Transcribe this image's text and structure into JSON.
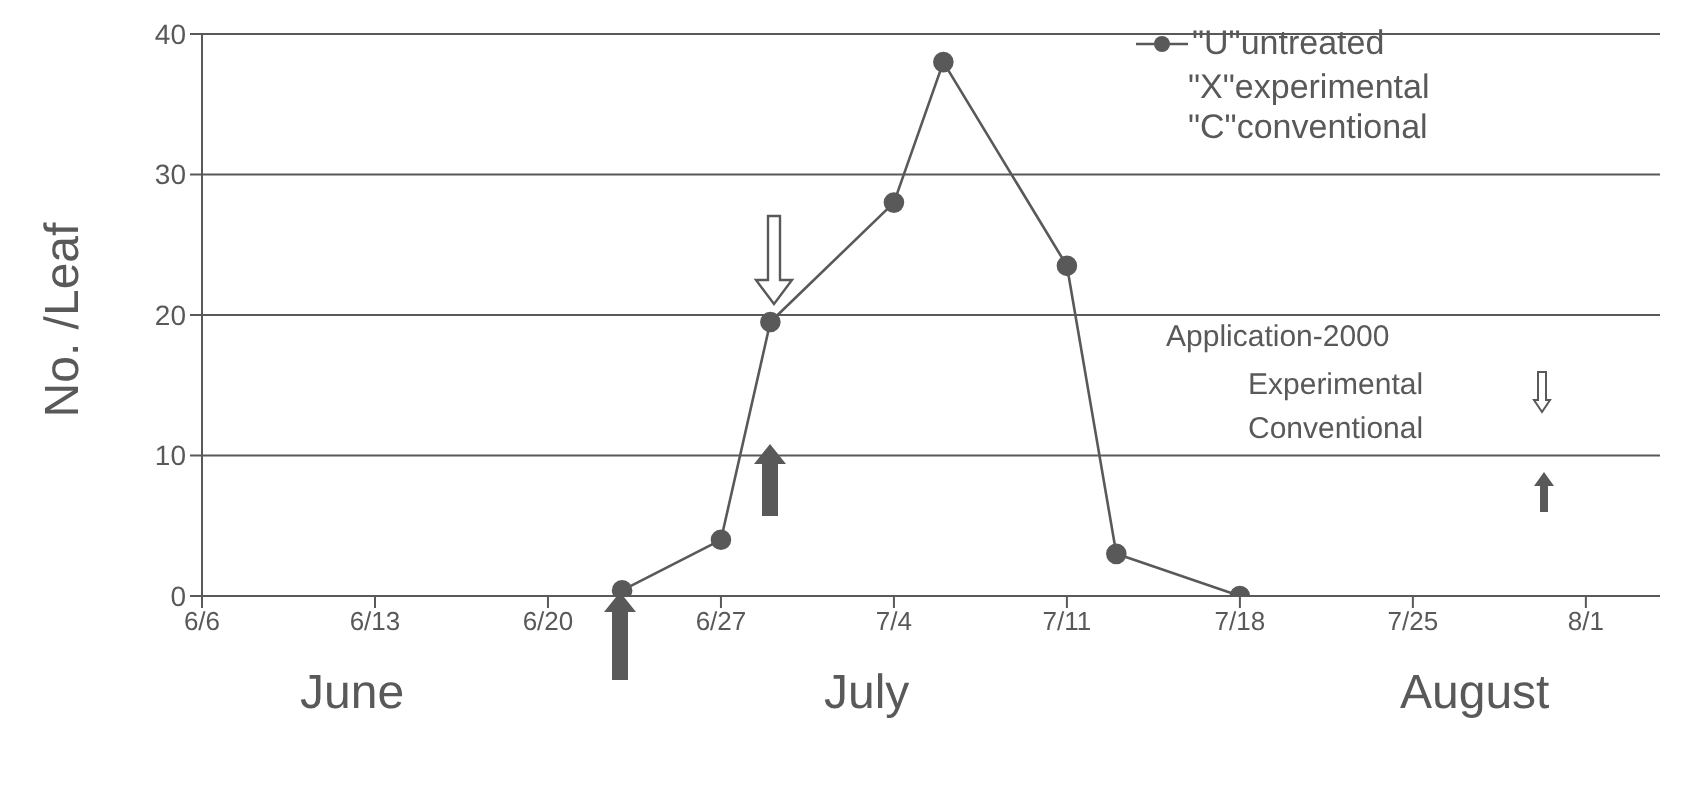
{
  "chart_data": {
    "type": "line",
    "ylabel": "No. /Leaf",
    "x": [
      "2000-06-23",
      "2000-06-27",
      "2000-06-29",
      "2000-07-04",
      "2000-07-06",
      "2000-07-11",
      "2000-07-13",
      "2000-07-18"
    ],
    "series": [
      {
        "name": "\"U\"untreated",
        "color": "#595959",
        "values": [
          0.4,
          4,
          19.5,
          28,
          38,
          23.5,
          3,
          0
        ]
      }
    ],
    "xlim": [
      "2000-06-06",
      "2000-08-04"
    ],
    "xticks": [
      {
        "value": "2000-06-06",
        "label": "6/6"
      },
      {
        "value": "2000-06-13",
        "label": "6/13"
      },
      {
        "value": "2000-06-20",
        "label": "6/20"
      },
      {
        "value": "2000-06-27",
        "label": "6/27"
      },
      {
        "value": "2000-07-04",
        "label": "7/4"
      },
      {
        "value": "2000-07-11",
        "label": "7/11"
      },
      {
        "value": "2000-07-18",
        "label": "7/18"
      },
      {
        "value": "2000-07-25",
        "label": "7/25"
      },
      {
        "value": "2000-08-01",
        "label": "8/1"
      }
    ],
    "ylim": [
      0,
      40
    ],
    "yticks": [
      0,
      10,
      20,
      30,
      40
    ],
    "grid": "y",
    "legend": "top right",
    "marker": "circle",
    "line_style": "solid",
    "annotations": [
      "\"X\"experimental",
      "\"C\"conventional",
      "Application-2000",
      "Experimental",
      "Conventional",
      "June",
      "July",
      "August"
    ]
  }
}
